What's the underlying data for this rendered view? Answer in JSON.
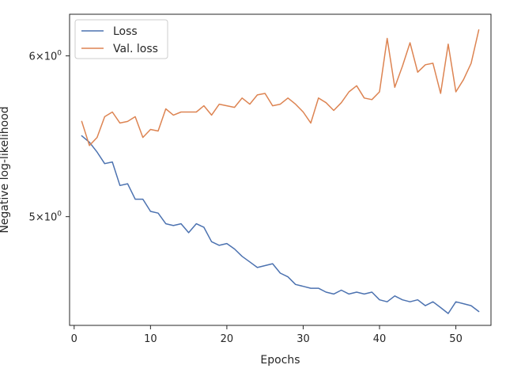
{
  "chart_data": {
    "type": "line",
    "xlabel": "Epochs",
    "ylabel": "Negative log-likelihood",
    "yscale": "log",
    "xlim": [
      -0.6,
      54.6
    ],
    "ylim": [
      4.42,
      6.29
    ],
    "xticks": [
      0,
      10,
      20,
      30,
      40,
      50
    ],
    "yticks": [
      {
        "value": 5,
        "base": "5",
        "times": "×",
        "exp_base": "10",
        "exp": "0"
      },
      {
        "value": 6,
        "base": "6",
        "times": "×",
        "exp_base": "10",
        "exp": "0"
      }
    ],
    "grid": false,
    "legend_position": "upper-left",
    "x": [
      1,
      2,
      3,
      4,
      5,
      6,
      7,
      8,
      9,
      10,
      11,
      12,
      13,
      14,
      15,
      16,
      17,
      18,
      19,
      20,
      21,
      22,
      23,
      24,
      25,
      26,
      27,
      28,
      29,
      30,
      31,
      32,
      33,
      34,
      35,
      36,
      37,
      38,
      39,
      40,
      41,
      42,
      43,
      44,
      45,
      46,
      47,
      48,
      49,
      50,
      51,
      52,
      53
    ],
    "series": [
      {
        "name": "Loss",
        "color": "#4c72b0",
        "values": [
          5.48,
          5.44,
          5.38,
          5.31,
          5.32,
          5.18,
          5.19,
          5.1,
          5.1,
          5.03,
          5.02,
          4.96,
          4.95,
          4.96,
          4.91,
          4.96,
          4.94,
          4.86,
          4.84,
          4.85,
          4.82,
          4.78,
          4.75,
          4.72,
          4.73,
          4.74,
          4.69,
          4.67,
          4.63,
          4.62,
          4.61,
          4.61,
          4.59,
          4.58,
          4.6,
          4.58,
          4.59,
          4.58,
          4.59,
          4.55,
          4.54,
          4.57,
          4.55,
          4.54,
          4.55,
          4.52,
          4.54,
          4.51,
          4.48,
          4.54,
          4.53,
          4.52,
          4.49
        ]
      },
      {
        "name": "Val. loss",
        "color": "#dd8452",
        "values": [
          5.57,
          5.42,
          5.47,
          5.6,
          5.63,
          5.56,
          5.57,
          5.6,
          5.47,
          5.52,
          5.51,
          5.65,
          5.61,
          5.63,
          5.63,
          5.63,
          5.67,
          5.61,
          5.68,
          5.67,
          5.66,
          5.72,
          5.68,
          5.74,
          5.75,
          5.67,
          5.68,
          5.72,
          5.68,
          5.63,
          5.56,
          5.72,
          5.69,
          5.64,
          5.69,
          5.76,
          5.8,
          5.72,
          5.71,
          5.76,
          6.12,
          5.79,
          5.93,
          6.09,
          5.89,
          5.94,
          5.95,
          5.75,
          6.08,
          5.76,
          5.84,
          5.95,
          6.18
        ]
      }
    ]
  }
}
